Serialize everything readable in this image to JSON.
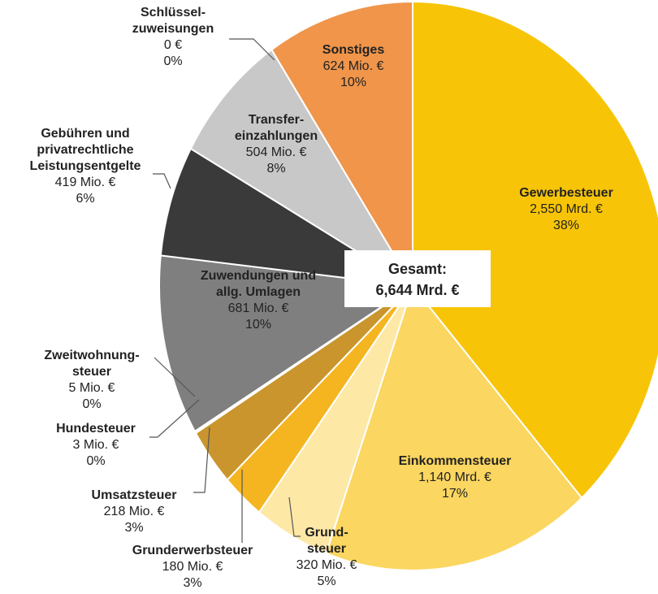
{
  "chart_data": {
    "type": "pie",
    "categories": [
      [
        "Gewerbesteuer"
      ],
      [
        "Einkommensteuer"
      ],
      [
        "Grund-",
        "steuer"
      ],
      [
        "Grunderwerbsteuer"
      ],
      [
        "Umsatzsteuer"
      ],
      [
        "Hundesteuer"
      ],
      [
        "Zweitwohnung-",
        "steuer"
      ],
      [
        "Zuwendungen und",
        "allg. Umlagen"
      ],
      [
        "Gebühren und",
        "privatrechtliche",
        "Leistungsentgelte"
      ],
      [
        "Transfer-",
        "einzahlungen"
      ],
      [
        "Schlüssel-",
        "zuweisungen"
      ],
      [
        "Sonstiges"
      ]
    ],
    "values": [
      2550,
      1140,
      320,
      180,
      218,
      3,
      5,
      681,
      419,
      504,
      0,
      624
    ],
    "value_labels": [
      "2,550 Mrd. €",
      "1,140 Mrd. €",
      "320 Mio. €",
      "180 Mio. €",
      "218 Mio. €",
      "3 Mio. €",
      "5 Mio. €",
      "681 Mio. €",
      "419 Mio. €",
      "504 Mio. €",
      "0 €",
      "624 Mio. €"
    ],
    "percent_labels": [
      "38%",
      "17%",
      "5%",
      "3%",
      "3%",
      "0%",
      "0%",
      "10%",
      "6%",
      "8%",
      "0%",
      "10%"
    ],
    "colors": [
      "#f7c407",
      "#fbd660",
      "#fde8a6",
      "#f4b520",
      "#c9952c",
      "#b98a2c",
      "#a57c32",
      "#7f7f7f",
      "#3a3a3a",
      "#c8c8c8",
      "#9a9a9a",
      "#f0954a"
    ],
    "center_label": [
      "Gesamt:",
      "6,644 Mrd. €"
    ]
  }
}
